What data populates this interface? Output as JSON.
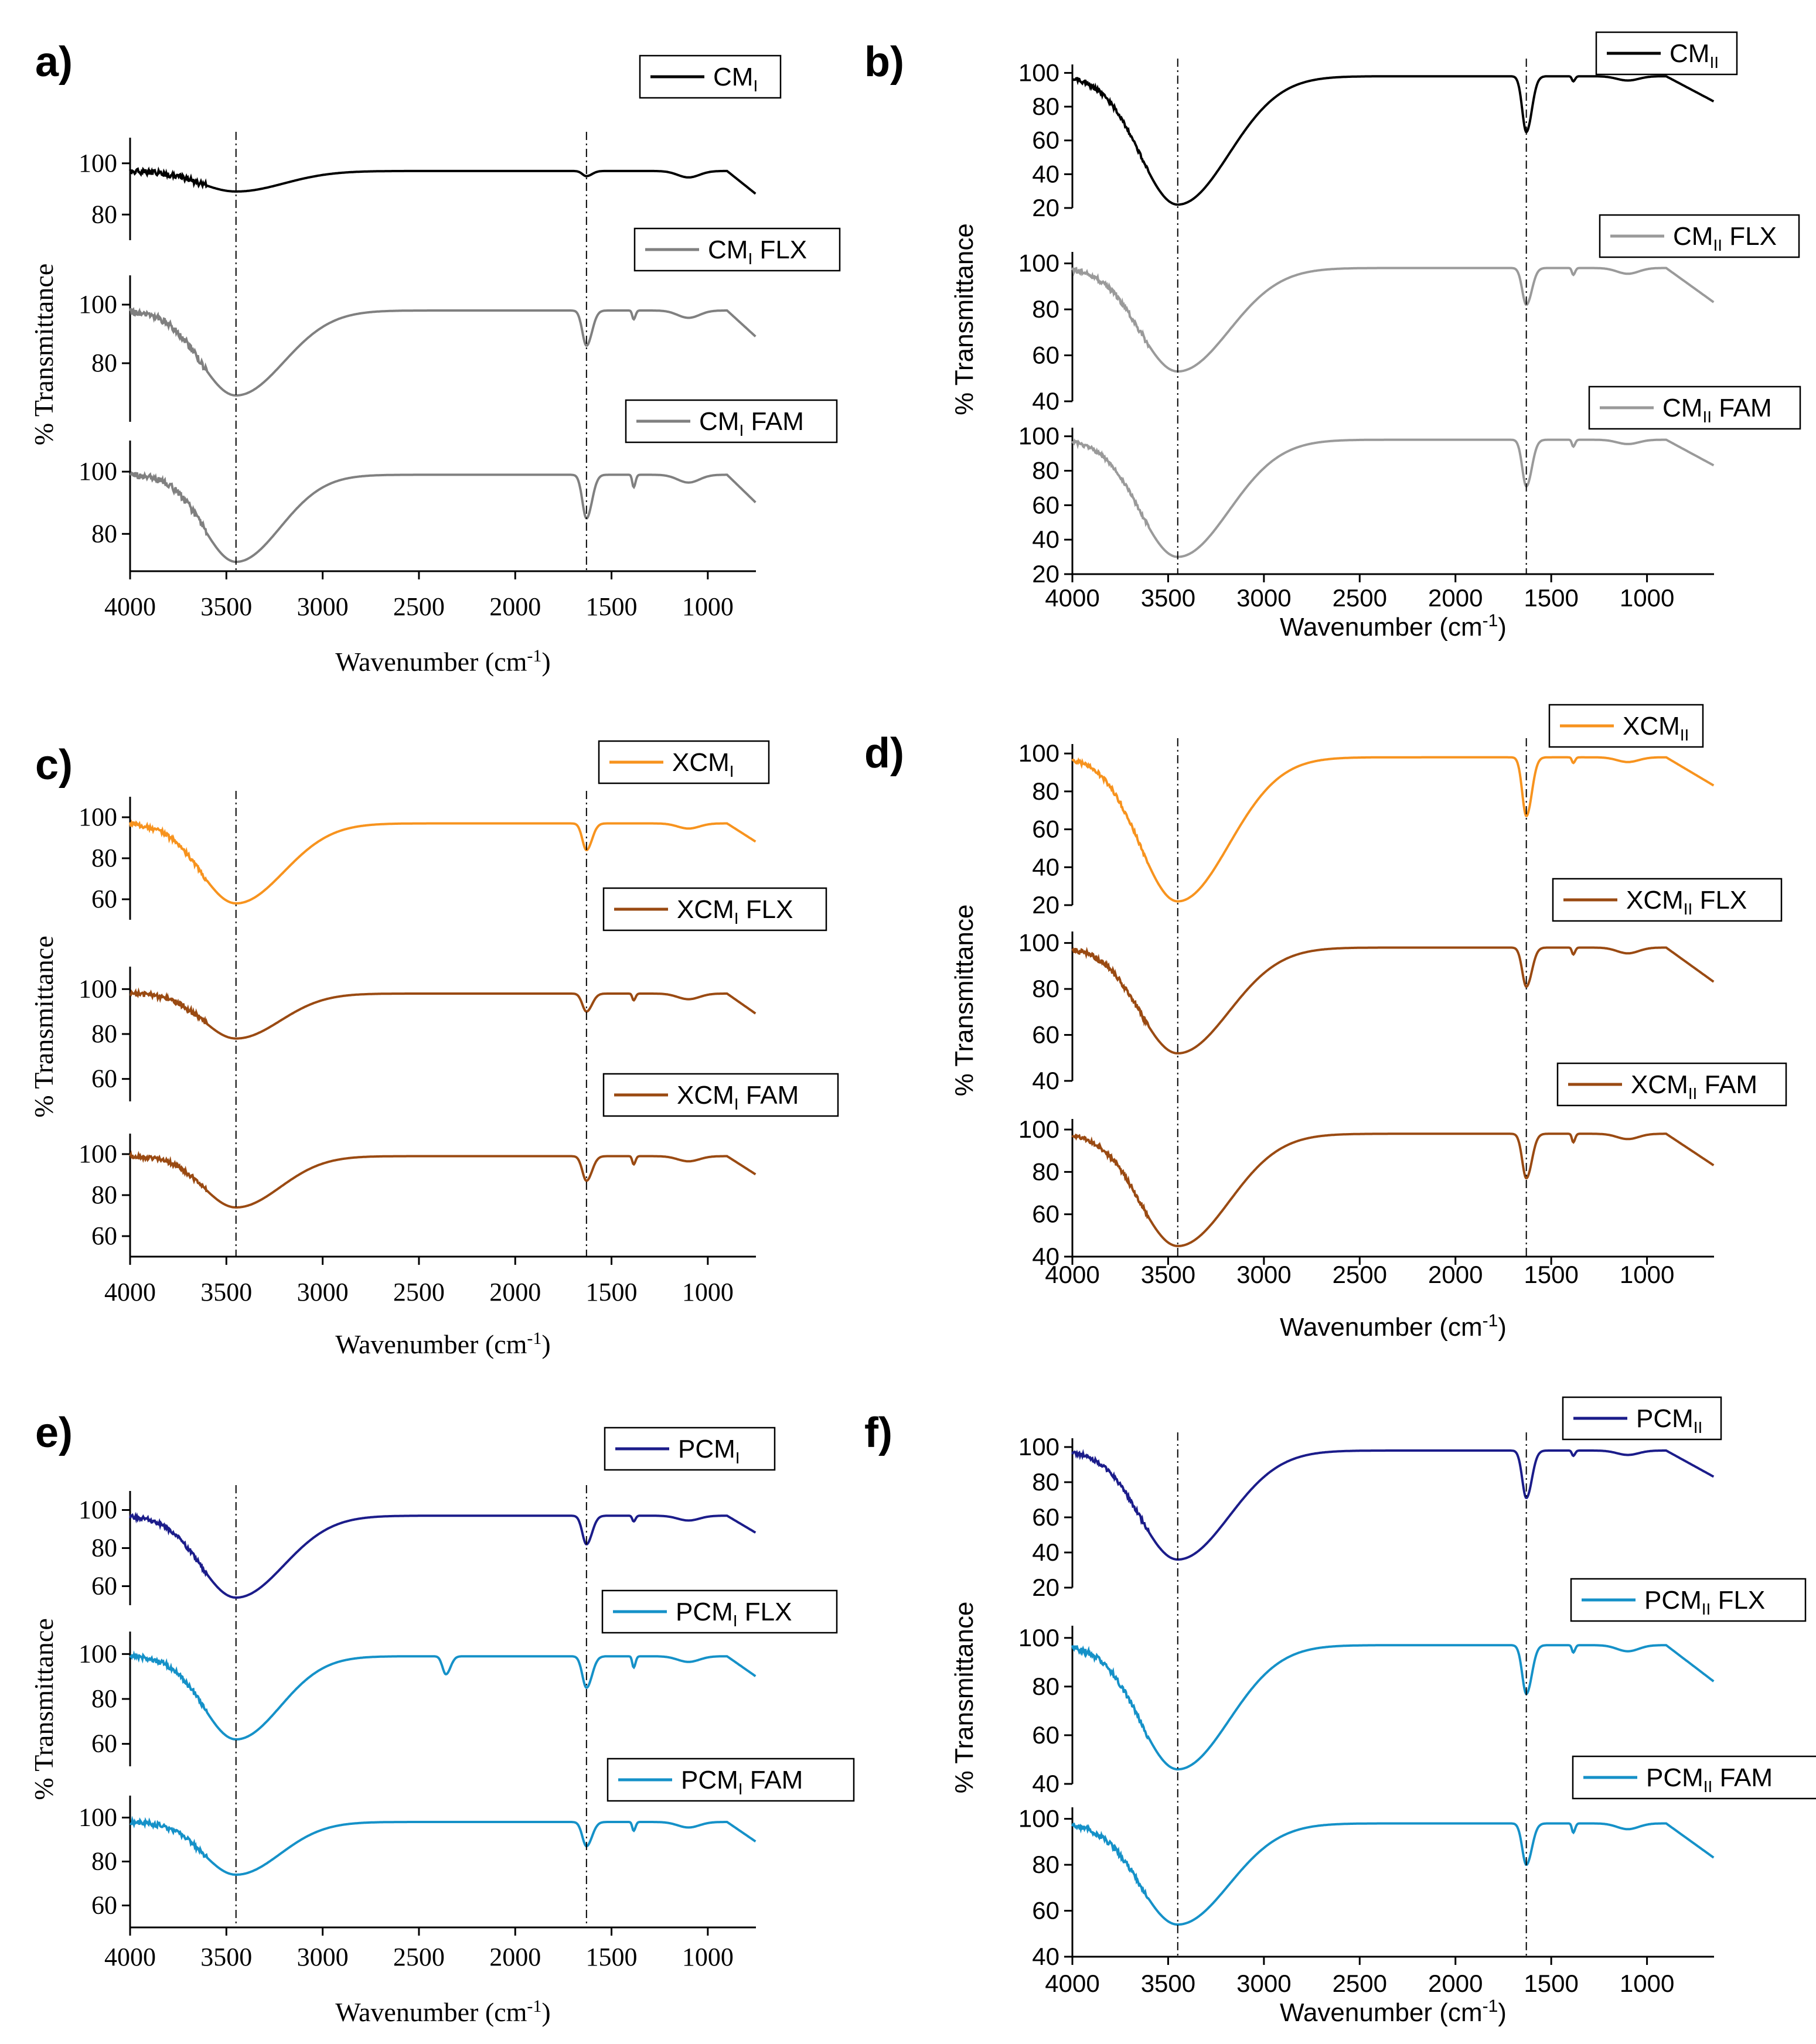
{
  "figure": {
    "panels": [
      {
        "id": "a",
        "label": "a)",
        "style": "serif",
        "x_label": "Wavenumber (cm-1)",
        "y_label": "% Transmittance",
        "x_ticks": [
          "4000",
          "3500",
          "3000",
          "2500",
          "2000",
          "1500",
          "1000"
        ],
        "series": [
          {
            "legend": "CMI",
            "color": "#000000",
            "y_ticks": [
              "100",
              "80"
            ],
            "y_range": [
              70,
              110
            ],
            "dips": [
              [
                3450,
                8,
                260
              ],
              [
                1630,
                2,
                30
              ]
            ],
            "base": 97
          },
          {
            "legend": "CMI FLX",
            "color": "#808080",
            "y_ticks": [
              "100",
              "80"
            ],
            "y_range": [
              60,
              110
            ],
            "dips": [
              [
                3450,
                29,
                260
              ],
              [
                1630,
                12,
                30
              ],
              [
                1385,
                3,
                10
              ]
            ],
            "base": 98
          },
          {
            "legend": "CMI FAM",
            "color": "#808080",
            "y_ticks": [
              "100",
              "80"
            ],
            "y_range": [
              68,
              110
            ],
            "dips": [
              [
                3450,
                28,
                240
              ],
              [
                1630,
                14,
                30
              ],
              [
                1385,
                4,
                10
              ]
            ],
            "base": 99
          }
        ]
      },
      {
        "id": "b",
        "label": "b)",
        "style": "sans",
        "x_label": "Wavenumber (cm-1)",
        "y_label": "% Transmittance",
        "x_ticks": [
          "4000",
          "3500",
          "3000",
          "2500",
          "2000",
          "1500",
          "1000"
        ],
        "series": [
          {
            "legend": "CMII",
            "color": "#000000",
            "y_ticks": [
              "100",
              "80",
              "60",
              "40",
              "20"
            ],
            "y_range": [
              20,
              105
            ],
            "dips": [
              [
                3450,
                76,
                280
              ],
              [
                1630,
                33,
                30
              ],
              [
                1385,
                3,
                10
              ]
            ],
            "base": 98
          },
          {
            "legend": "CMII FLX",
            "color": "#9a9a9a",
            "y_ticks": [
              "100",
              "80",
              "60",
              "40"
            ],
            "y_range": [
              40,
              105
            ],
            "dips": [
              [
                3450,
                45,
                280
              ],
              [
                1630,
                16,
                30
              ],
              [
                1385,
                3,
                10
              ]
            ],
            "base": 98
          },
          {
            "legend": "CMII FAM",
            "color": "#9a9a9a",
            "y_ticks": [
              "100",
              "80",
              "60",
              "40",
              "20"
            ],
            "y_range": [
              20,
              105
            ],
            "dips": [
              [
                3450,
                68,
                280
              ],
              [
                1630,
                27,
                30
              ],
              [
                1385,
                4,
                10
              ]
            ],
            "base": 98
          }
        ]
      },
      {
        "id": "c",
        "label": "c)",
        "style": "serif",
        "x_label": "Wavenumber (cm-1)",
        "y_label": "% Transmittance",
        "x_ticks": [
          "4000",
          "3500",
          "3000",
          "2500",
          "2000",
          "1500",
          "1000"
        ],
        "series": [
          {
            "legend": "XCMI",
            "color": "#f7931e",
            "y_ticks": [
              "100",
              "80",
              "60"
            ],
            "y_range": [
              50,
              110
            ],
            "dips": [
              [
                3450,
                39,
                260
              ],
              [
                1630,
                13,
                30
              ]
            ],
            "base": 97
          },
          {
            "legend": "XCMI FLX",
            "color": "#9a4a12",
            "y_ticks": [
              "100",
              "80",
              "60"
            ],
            "y_range": [
              50,
              110
            ],
            "dips": [
              [
                3450,
                20,
                240
              ],
              [
                1630,
                8,
                30
              ],
              [
                1385,
                3,
                10
              ]
            ],
            "base": 98
          },
          {
            "legend": "XCMI FAM",
            "color": "#9a4a12",
            "y_ticks": [
              "100",
              "80",
              "60"
            ],
            "y_range": [
              50,
              110
            ],
            "dips": [
              [
                3450,
                25,
                240
              ],
              [
                1630,
                12,
                30
              ],
              [
                1385,
                4,
                10
              ]
            ],
            "base": 99
          }
        ]
      },
      {
        "id": "d",
        "label": "d)",
        "style": "sans",
        "x_label": "Wavenumber (cm-1)",
        "y_label": "% Transmittance",
        "x_ticks": [
          "4000",
          "3500",
          "3000",
          "2500",
          "2000",
          "1500",
          "1000"
        ],
        "series": [
          {
            "legend": "XCMII",
            "color": "#f7931e",
            "y_ticks": [
              "100",
              "80",
              "60",
              "40",
              "20"
            ],
            "y_range": [
              20,
              105
            ],
            "dips": [
              [
                3450,
                76,
                280
              ],
              [
                1630,
                31,
                30
              ],
              [
                1385,
                3,
                10
              ]
            ],
            "base": 98
          },
          {
            "legend": "XCMII FLX",
            "color": "#9a4a12",
            "y_ticks": [
              "100",
              "80",
              "60",
              "40"
            ],
            "y_range": [
              40,
              105
            ],
            "dips": [
              [
                3450,
                46,
                280
              ],
              [
                1630,
                17,
                30
              ],
              [
                1385,
                3,
                10
              ]
            ],
            "base": 98
          },
          {
            "legend": "XCMII FAM",
            "color": "#9a4a12",
            "y_ticks": [
              "100",
              "80",
              "60",
              "40"
            ],
            "y_range": [
              40,
              105
            ],
            "dips": [
              [
                3450,
                53,
                280
              ],
              [
                1630,
                21,
                30
              ],
              [
                1385,
                4,
                10
              ]
            ],
            "base": 98
          }
        ]
      },
      {
        "id": "e",
        "label": "e)",
        "style": "serif",
        "x_label": "Wavenumber (cm-1)",
        "y_label": "% Transmittance",
        "x_ticks": [
          "4000",
          "3500",
          "3000",
          "2500",
          "2000",
          "1500",
          "1000"
        ],
        "series": [
          {
            "legend": "PCMI",
            "color": "#1b1c8a",
            "y_ticks": [
              "100",
              "80",
              "60"
            ],
            "y_range": [
              50,
              110
            ],
            "dips": [
              [
                3450,
                43,
                260
              ],
              [
                1630,
                15,
                30
              ],
              [
                1385,
                3,
                10
              ]
            ],
            "base": 97
          },
          {
            "legend": "PCMI FLX",
            "color": "#1591c8",
            "y_ticks": [
              "100",
              "80",
              "60"
            ],
            "y_range": [
              50,
              110
            ],
            "dips": [
              [
                3450,
                37,
                240
              ],
              [
                1630,
                14,
                30
              ],
              [
                2360,
                8,
                25
              ],
              [
                1385,
                5,
                10
              ]
            ],
            "base": 99
          },
          {
            "legend": "PCMI FAM",
            "color": "#1591c8",
            "y_ticks": [
              "100",
              "80",
              "60"
            ],
            "y_range": [
              50,
              110
            ],
            "dips": [
              [
                3450,
                24,
                240
              ],
              [
                1630,
                11,
                30
              ],
              [
                1385,
                4,
                10
              ]
            ],
            "base": 98
          }
        ]
      },
      {
        "id": "f",
        "label": "f)",
        "style": "sans",
        "x_label": "Wavenumber (cm-1)",
        "y_label": "% Transmittance",
        "x_ticks": [
          "4000",
          "3500",
          "3000",
          "2500",
          "2000",
          "1500",
          "1000"
        ],
        "series": [
          {
            "legend": "PCMII",
            "color": "#1b1c8a",
            "y_ticks": [
              "100",
              "80",
              "60",
              "40",
              "20"
            ],
            "y_range": [
              20,
              105
            ],
            "dips": [
              [
                3450,
                62,
                280
              ],
              [
                1630,
                27,
                30
              ],
              [
                1385,
                3,
                10
              ]
            ],
            "base": 98
          },
          {
            "legend": "PCMII FLX",
            "color": "#1591c8",
            "y_ticks": [
              "100",
              "80",
              "60",
              "40"
            ],
            "y_range": [
              40,
              105
            ],
            "dips": [
              [
                3450,
                51,
                280
              ],
              [
                1630,
                20,
                30
              ],
              [
                1385,
                3,
                10
              ]
            ],
            "base": 97
          },
          {
            "legend": "PCMII FAM",
            "color": "#1591c8",
            "y_ticks": [
              "100",
              "80",
              "60",
              "40"
            ],
            "y_range": [
              40,
              105
            ],
            "dips": [
              [
                3450,
                44,
                280
              ],
              [
                1630,
                18,
                30
              ],
              [
                1385,
                4,
                10
              ]
            ],
            "base": 98
          }
        ]
      }
    ]
  },
  "chart_data": [
    {
      "type": "line",
      "title": "a)",
      "xlabel": "Wavenumber (cm-1)",
      "ylabel": "% Transmittance",
      "xlim": [
        4000,
        750
      ],
      "series": [
        {
          "name": "CMI",
          "min_at": 3450,
          "min_value": 89
        },
        {
          "name": "CMI FLX",
          "min_at": 3450,
          "min_value": 69
        },
        {
          "name": "CMI FAM",
          "min_at": 3450,
          "min_value": 71
        }
      ]
    },
    {
      "type": "line",
      "title": "b)",
      "xlabel": "Wavenumber (cm-1)",
      "ylabel": "% Transmittance",
      "xlim": [
        4000,
        650
      ],
      "series": [
        {
          "name": "CMII",
          "min_at": 3450,
          "min_value": 22
        },
        {
          "name": "CMII FLX",
          "min_at": 3450,
          "min_value": 53
        },
        {
          "name": "CMII FAM",
          "min_at": 3450,
          "min_value": 30
        }
      ]
    },
    {
      "type": "line",
      "title": "c)",
      "xlabel": "Wavenumber (cm-1)",
      "ylabel": "% Transmittance",
      "xlim": [
        4000,
        750
      ],
      "series": [
        {
          "name": "XCMI",
          "min_at": 3450,
          "min_value": 58
        },
        {
          "name": "XCMI FLX",
          "min_at": 3450,
          "min_value": 78
        },
        {
          "name": "XCMI FAM",
          "min_at": 3450,
          "min_value": 74
        }
      ]
    },
    {
      "type": "line",
      "title": "d)",
      "xlabel": "Wavenumber (cm-1)",
      "ylabel": "% Transmittance",
      "xlim": [
        4000,
        650
      ],
      "series": [
        {
          "name": "XCMII",
          "min_at": 3450,
          "min_value": 22
        },
        {
          "name": "XCMII FLX",
          "min_at": 3450,
          "min_value": 52
        },
        {
          "name": "XCMII FAM",
          "min_at": 3450,
          "min_value": 45
        }
      ]
    },
    {
      "type": "line",
      "title": "e)",
      "xlabel": "Wavenumber (cm-1)",
      "ylabel": "% Transmittance",
      "xlim": [
        4000,
        750
      ],
      "series": [
        {
          "name": "PCMI",
          "min_at": 3450,
          "min_value": 54
        },
        {
          "name": "PCMI FLX",
          "min_at": 3450,
          "min_value": 62
        },
        {
          "name": "PCMI FAM",
          "min_at": 3450,
          "min_value": 74
        }
      ]
    },
    {
      "type": "line",
      "title": "f)",
      "xlabel": "Wavenumber (cm-1)",
      "ylabel": "% Transmittance",
      "xlim": [
        4000,
        650
      ],
      "series": [
        {
          "name": "PCMII",
          "min_at": 3450,
          "min_value": 36
        },
        {
          "name": "PCMII FLX",
          "min_at": 3450,
          "min_value": 46
        },
        {
          "name": "PCMII FAM",
          "min_at": 3450,
          "min_value": 54
        }
      ]
    }
  ]
}
